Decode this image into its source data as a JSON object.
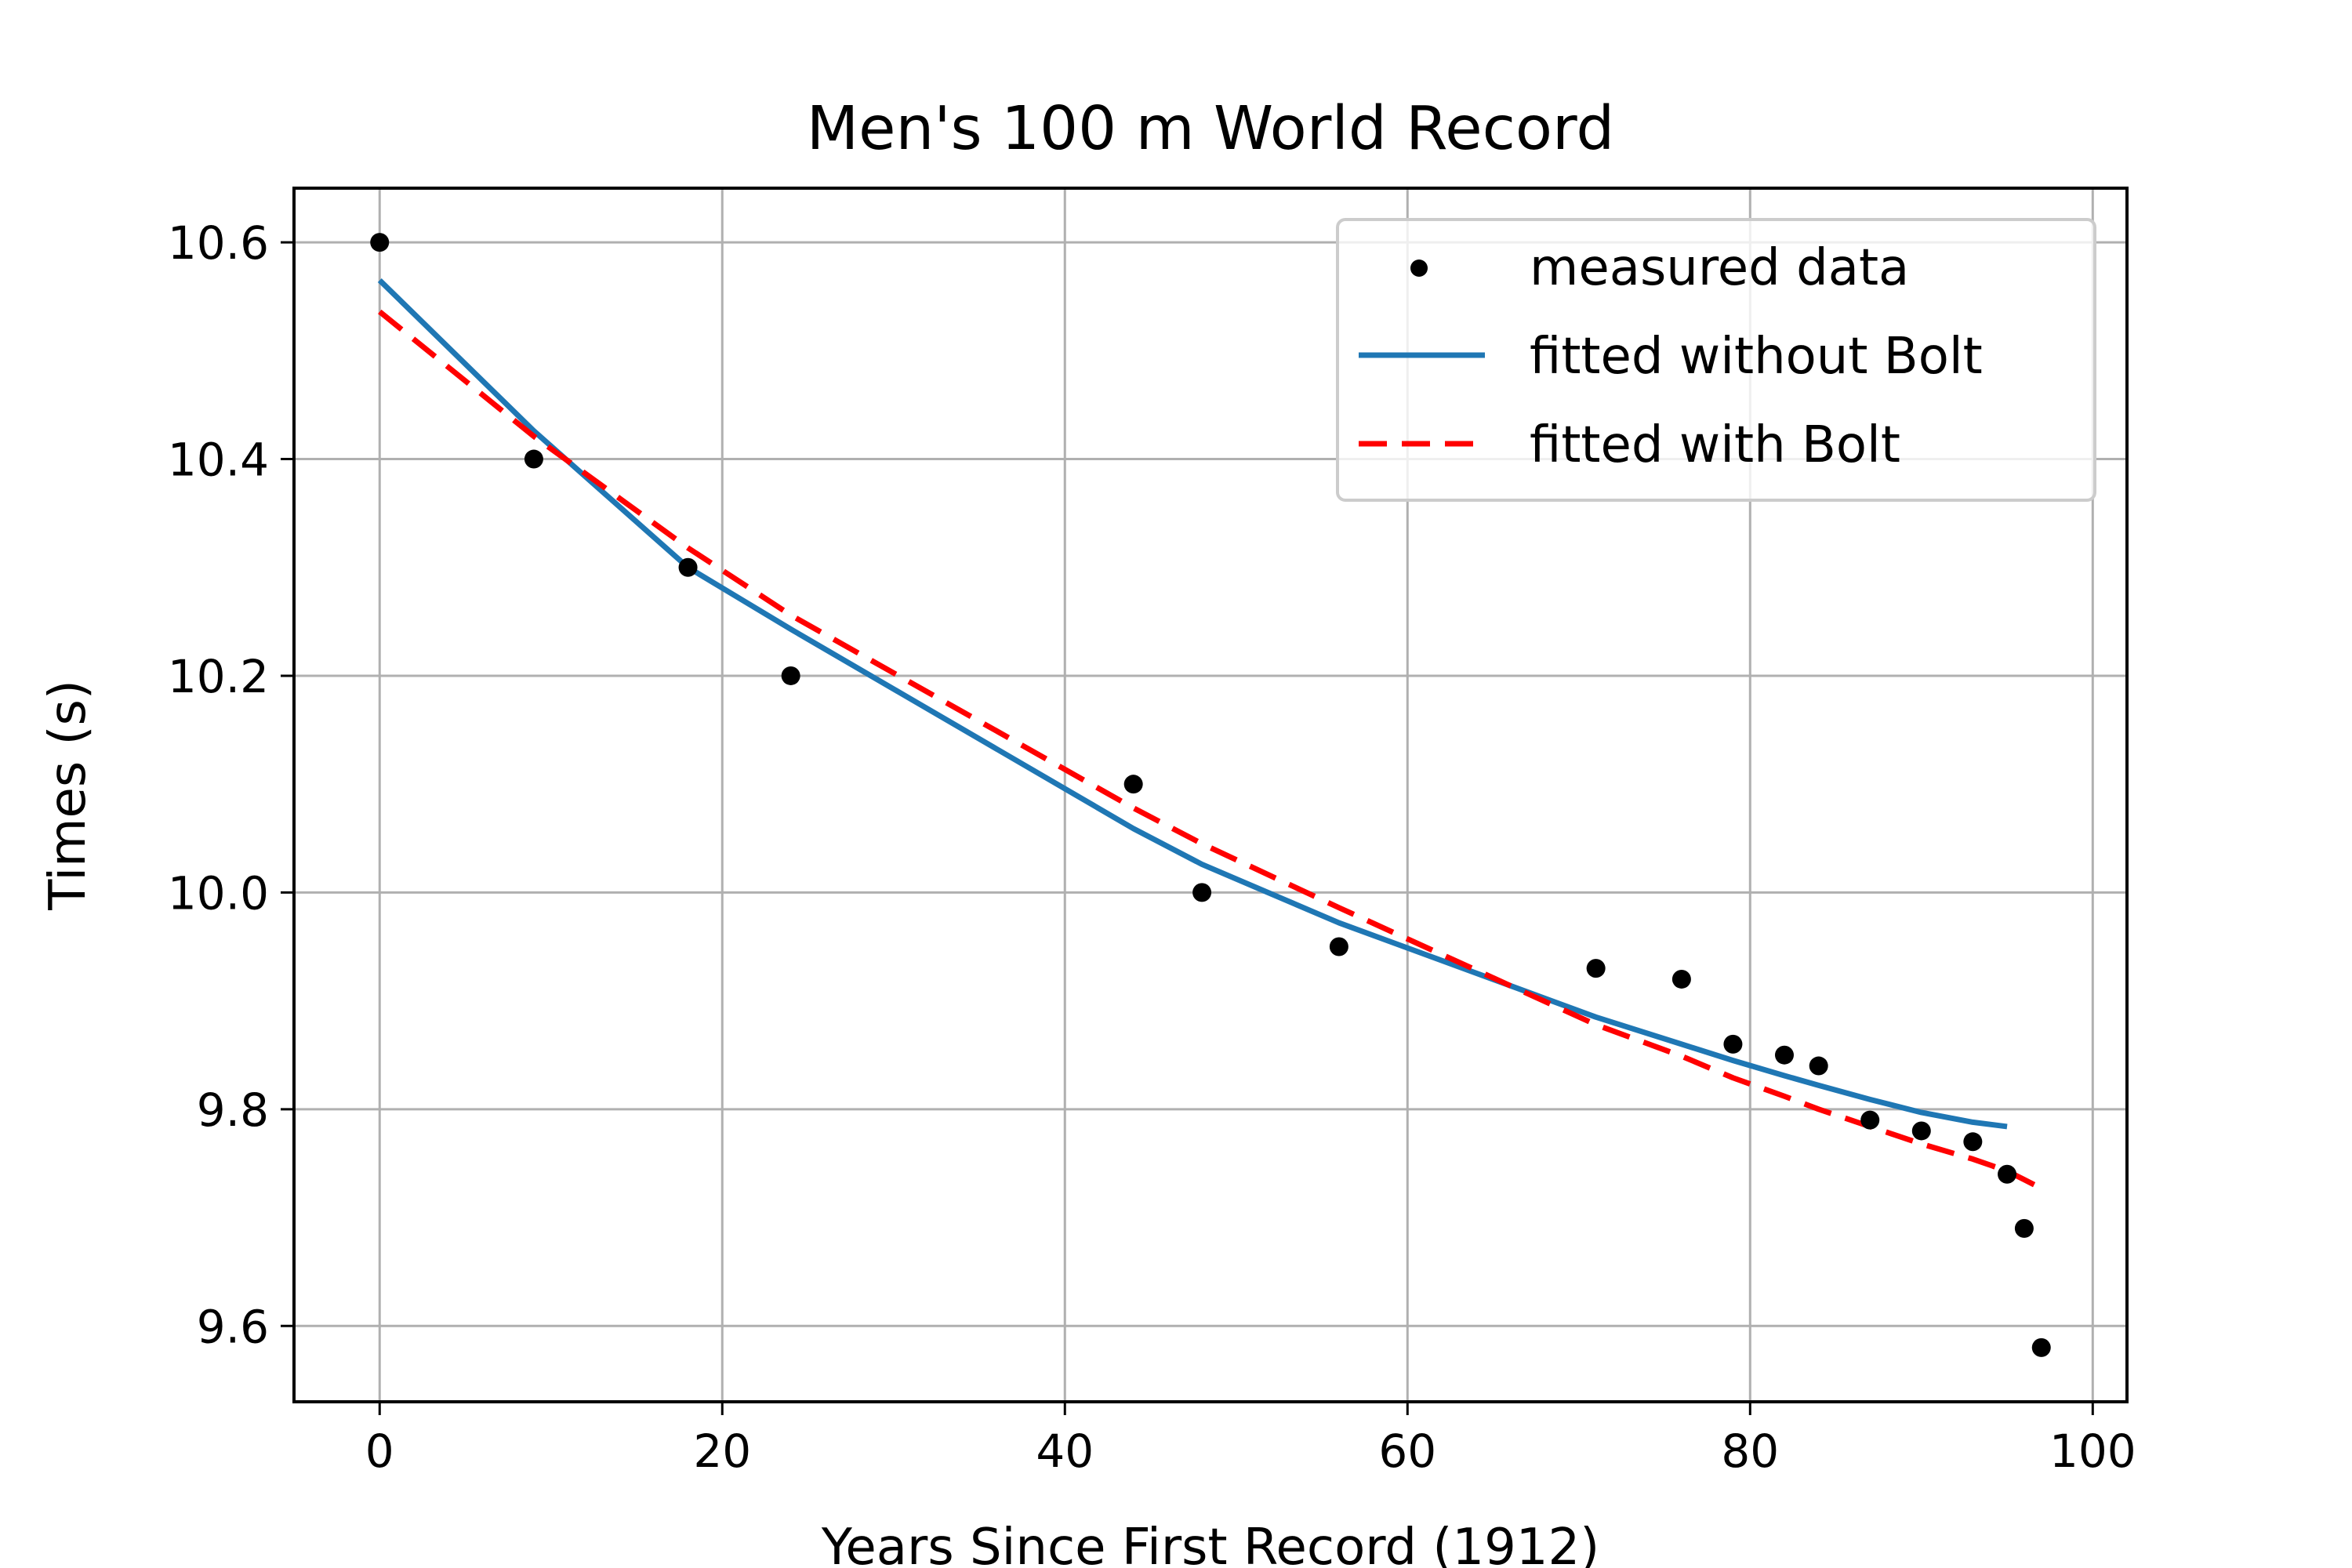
{
  "chart_data": {
    "type": "scatter",
    "title": "Men's 100 m World Record",
    "xlabel": "Years Since First Record (1912)",
    "ylabel": "Times (s)",
    "xlim": [
      -5,
      102
    ],
    "ylim": [
      9.53,
      10.65
    ],
    "xticks": [
      0,
      20,
      40,
      60,
      80,
      100
    ],
    "xtick_labels": [
      "0",
      "20",
      "40",
      "60",
      "80",
      "100"
    ],
    "yticks": [
      9.6,
      9.8,
      10.0,
      10.2,
      10.4,
      10.6
    ],
    "ytick_labels": [
      "9.6",
      "9.8",
      "10.0",
      "10.2",
      "10.4",
      "10.6"
    ],
    "grid": true,
    "legend_position": "top-right",
    "series": [
      {
        "name": "measured data",
        "kind": "points",
        "color": "#000000",
        "x": [
          0,
          9,
          18,
          24,
          44,
          48,
          56,
          71,
          76,
          79,
          82,
          84,
          87,
          90,
          93,
          95,
          96,
          97
        ],
        "y": [
          10.6,
          10.4,
          10.3,
          10.2,
          10.1,
          10.0,
          9.95,
          9.93,
          9.92,
          9.86,
          9.85,
          9.84,
          9.79,
          9.78,
          9.77,
          9.74,
          9.69,
          9.58
        ]
      },
      {
        "name": "fitted without Bolt",
        "kind": "line",
        "style": "solid",
        "color": "#1f77b4",
        "x": [
          0,
          9,
          18,
          24,
          44,
          48,
          56,
          71,
          76,
          79,
          82,
          84,
          87,
          90,
          93,
          95
        ],
        "y": [
          10.565,
          10.426,
          10.3,
          10.243,
          10.059,
          10.026,
          9.972,
          9.885,
          9.86,
          9.845,
          9.831,
          9.822,
          9.809,
          9.797,
          9.788,
          9.784
        ]
      },
      {
        "name": "fitted with Bolt",
        "kind": "line",
        "style": "dashed",
        "color": "#ff0000",
        "x": [
          0,
          9,
          18,
          24,
          44,
          48,
          56,
          71,
          76,
          79,
          82,
          84,
          87,
          90,
          93,
          95,
          96,
          97
        ],
        "y": [
          10.536,
          10.421,
          10.318,
          10.256,
          10.078,
          10.045,
          9.986,
          9.878,
          9.849,
          9.829,
          9.812,
          9.8,
          9.784,
          9.768,
          9.754,
          9.743,
          9.735,
          9.727
        ]
      }
    ]
  }
}
